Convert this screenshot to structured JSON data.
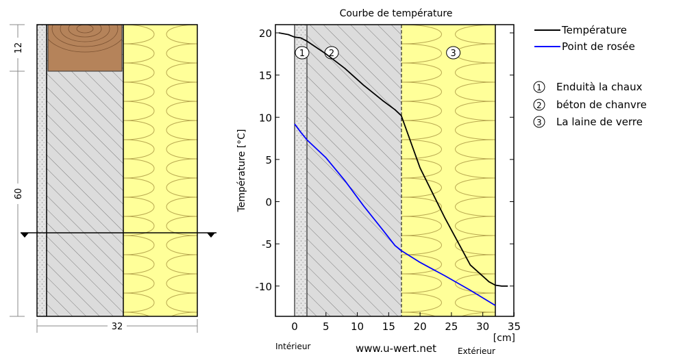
{
  "cross_section": {
    "dim_top": "12",
    "dim_side": "60",
    "dim_bottom": "32"
  },
  "chart_data": {
    "type": "line",
    "title": "Courbe de température",
    "ylabel": "Température [°C]",
    "xlabel_unit": "[cm]",
    "x_left_label": "Intérieur",
    "x_right_label": "Extérieur",
    "watermark": "www.u-wert.net",
    "xlim": [
      -3,
      35
    ],
    "ylim": [
      -13.5,
      21
    ],
    "xticks": [
      0,
      5,
      10,
      15,
      20,
      25,
      30,
      35
    ],
    "yticks": [
      20,
      15,
      10,
      5,
      0,
      -5,
      -10
    ],
    "layers": [
      {
        "marker": "1",
        "from": 0,
        "to": 2,
        "material": "plaster",
        "label": "Enduità la chaux"
      },
      {
        "marker": "2",
        "from": 2,
        "to": 17,
        "material": "hemp-concrete",
        "label": "béton de chanvre"
      },
      {
        "marker": "3",
        "from": 17,
        "to": 32,
        "material": "glass-wool",
        "label": "La laine de verre"
      }
    ],
    "series": [
      {
        "name": "Température",
        "color": "#000000",
        "x": [
          -2.5,
          -1,
          0,
          1,
          2,
          5,
          8,
          11,
          14,
          16,
          17,
          20,
          24,
          28,
          31,
          32,
          33,
          34
        ],
        "y": [
          20,
          19.8,
          19.5,
          19.4,
          19.0,
          17.5,
          15.8,
          13.8,
          12.0,
          10.9,
          10.2,
          4.0,
          -2.0,
          -7.5,
          -9.5,
          -9.9,
          -10.0,
          -10.0
        ]
      },
      {
        "name": "Point de rosée",
        "color": "#0000ff",
        "x": [
          0,
          1,
          2,
          5,
          8,
          11,
          14,
          16,
          17,
          20,
          24,
          28,
          32
        ],
        "y": [
          9.2,
          8.2,
          7.3,
          5.2,
          2.5,
          -0.5,
          -3.3,
          -5.2,
          -5.8,
          -7.2,
          -8.8,
          -10.5,
          -12.3
        ]
      }
    ]
  }
}
